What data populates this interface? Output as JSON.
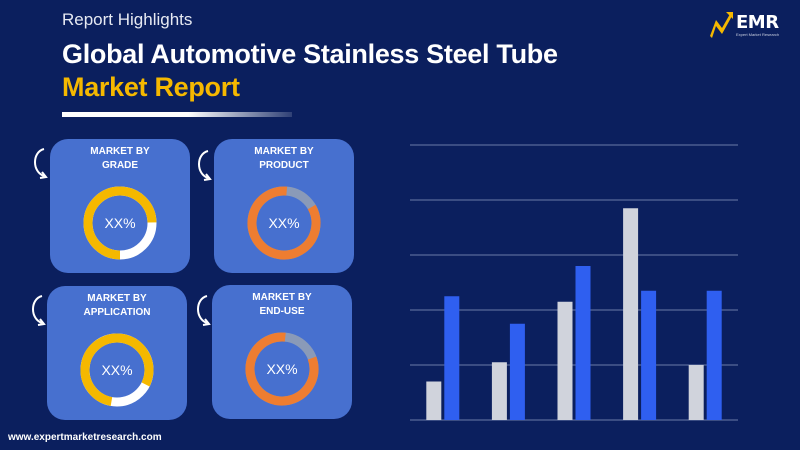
{
  "header": {
    "subtitle": "Report Highlights",
    "title_line1": "Global Automotive Stainless Steel Tube",
    "title_line2": "Market Report"
  },
  "logo": {
    "text": "EMR",
    "tagline": "Expert Market Research"
  },
  "cards": [
    {
      "line1": "MARKET BY",
      "line2": "GRADE",
      "value": "XX%",
      "ring_color": "#f5b800"
    },
    {
      "line1": "MARKET BY",
      "line2": "PRODUCT",
      "value": "XX%",
      "ring_color": "#ee7d31"
    },
    {
      "line1": "MARKET BY",
      "line2": "APPLICATION",
      "value": "XX%",
      "ring_color": "#f5b800"
    },
    {
      "line1": "MARKET BY",
      "line2": "END-USE",
      "value": "XX%",
      "ring_color": "#ee7d31"
    }
  ],
  "footer": {
    "url": "www.expertmarketresearch.com"
  },
  "colors": {
    "background": "#0b1f5e",
    "card": "#4770cf",
    "accent": "#f5b800",
    "bar_gray": "#d0d3dc",
    "bar_blue": "#2f5ff0"
  },
  "chart_data": {
    "type": "bar",
    "categories": [
      "",
      "",
      "",
      "",
      ""
    ],
    "series": [
      {
        "values": [
          0.7,
          1.05,
          2.15,
          3.85,
          1.0
        ],
        "color": "#d0d3dc"
      },
      {
        "values": [
          2.25,
          1.75,
          2.8,
          2.35,
          2.35
        ],
        "color": "#2f5ff0"
      }
    ],
    "ylim": [
      0,
      5
    ],
    "grid": true,
    "title": "",
    "xlabel": "",
    "ylabel": ""
  }
}
